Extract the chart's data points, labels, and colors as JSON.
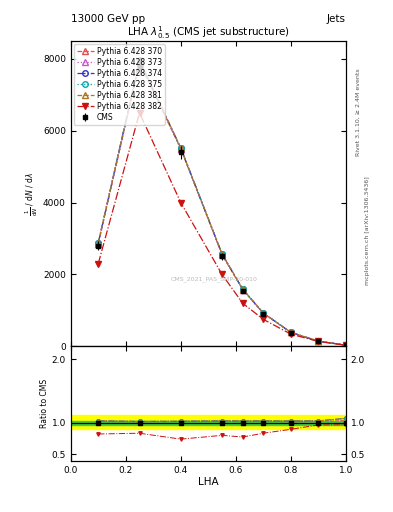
{
  "title": "LHA $\\lambda^{1}_{0.5}$ (CMS jet substructure)",
  "top_left_label": "13000 GeV pp",
  "top_right_label": "Jets",
  "right_label1": "Rivet 3.1.10, ≥ 2.4M events",
  "right_label2": "mcplots.cern.ch [arXiv:1306.3436]",
  "xlabel": "LHA",
  "ylabel": "$\\frac{1}{\\mathrm{d}N}$ / $\\mathrm{d}N$ / $\\mathrm{d}\\lambda$",
  "watermark": "CMS_2021_PAS_SMP-20-010",
  "xlim": [
    0,
    1
  ],
  "ylim_main": [
    0,
    8500
  ],
  "ylim_ratio": [
    0.4,
    2.2
  ],
  "ratio_yticks": [
    0.5,
    1.0,
    2.0
  ],
  "x_data": [
    0.1,
    0.25,
    0.4,
    0.55,
    0.625,
    0.7,
    0.8,
    0.9,
    1.0
  ],
  "cms_y": [
    2800,
    7800,
    5400,
    2500,
    1550,
    900,
    380,
    140,
    30
  ],
  "cms_yerr": [
    120,
    250,
    180,
    90,
    55,
    30,
    15,
    8,
    3
  ],
  "series": [
    {
      "label": "Pythia 6.428 370",
      "color": "#e05050",
      "linestyle": "--",
      "marker": "^",
      "markerfacecolor": "none",
      "y": [
        2850,
        7900,
        5500,
        2550,
        1580,
        920,
        385,
        142,
        31
      ]
    },
    {
      "label": "Pythia 6.428 373",
      "color": "#cc55cc",
      "linestyle": ":",
      "marker": "^",
      "markerfacecolor": "none",
      "y": [
        2860,
        7900,
        5500,
        2560,
        1580,
        920,
        385,
        142,
        31
      ]
    },
    {
      "label": "Pythia 6.428 374",
      "color": "#3333cc",
      "linestyle": "-.",
      "marker": "o",
      "markerfacecolor": "none",
      "y": [
        2880,
        7950,
        5520,
        2570,
        1590,
        925,
        390,
        144,
        32
      ]
    },
    {
      "label": "Pythia 6.428 375",
      "color": "#00aaaa",
      "linestyle": ":",
      "marker": "o",
      "markerfacecolor": "none",
      "y": [
        2880,
        7960,
        5520,
        2570,
        1590,
        925,
        390,
        144,
        32
      ]
    },
    {
      "label": "Pythia 6.428 381",
      "color": "#aa7722",
      "linestyle": "--",
      "marker": "^",
      "markerfacecolor": "none",
      "y": [
        2880,
        7950,
        5520,
        2570,
        1590,
        925,
        390,
        144,
        32
      ]
    },
    {
      "label": "Pythia 6.428 382",
      "color": "#cc1111",
      "linestyle": "-.",
      "marker": "v",
      "markerfacecolor": "#cc1111",
      "y": [
        2300,
        6500,
        4000,
        2000,
        1200,
        750,
        340,
        135,
        29
      ]
    }
  ],
  "green_band_lower": 0.97,
  "green_band_upper": 1.03,
  "yellow_band_lower": 0.9,
  "yellow_band_upper": 1.12,
  "background_color": "#ffffff"
}
